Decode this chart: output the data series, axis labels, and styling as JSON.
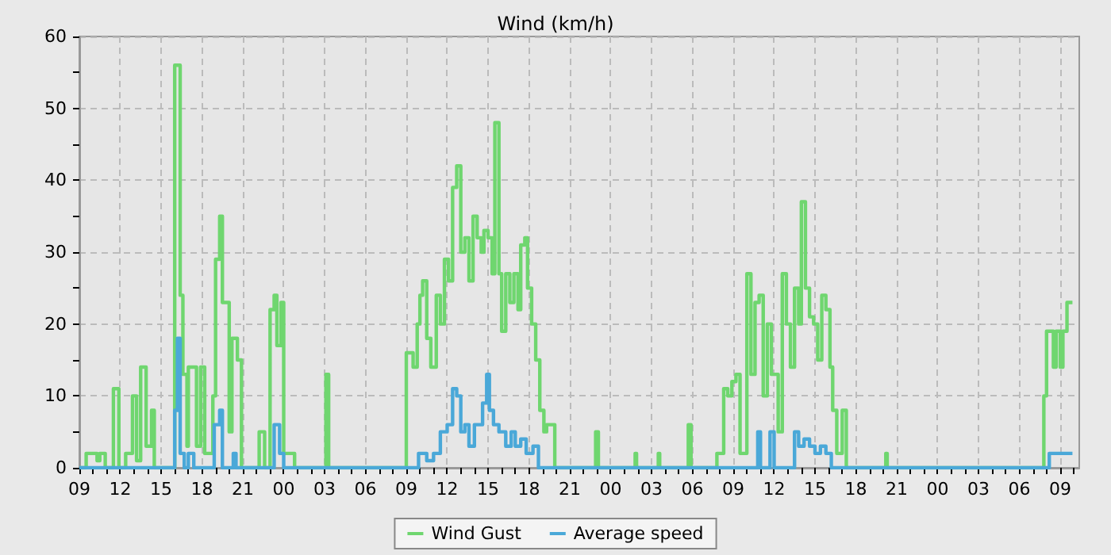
{
  "chart_data": {
    "type": "step",
    "title": "Wind (km/h)",
    "legend": "bottom",
    "grid": true,
    "marker": "none",
    "xlim": [
      9,
      82.4
    ],
    "xticks": [
      {
        "value": 9,
        "label": "09"
      },
      {
        "value": 10,
        "label": null
      },
      {
        "value": 11,
        "label": null
      },
      {
        "value": 12,
        "label": "12"
      },
      {
        "value": 13,
        "label": null
      },
      {
        "value": 14,
        "label": null
      },
      {
        "value": 15,
        "label": "15"
      },
      {
        "value": 16,
        "label": null
      },
      {
        "value": 17,
        "label": null
      },
      {
        "value": 18,
        "label": "18"
      },
      {
        "value": 19,
        "label": null
      },
      {
        "value": 20,
        "label": null
      },
      {
        "value": 21,
        "label": "21"
      },
      {
        "value": 22,
        "label": null
      },
      {
        "value": 23,
        "label": null
      },
      {
        "value": 24,
        "label": "00"
      },
      {
        "value": 25,
        "label": null
      },
      {
        "value": 26,
        "label": null
      },
      {
        "value": 27,
        "label": "03"
      },
      {
        "value": 28,
        "label": null
      },
      {
        "value": 29,
        "label": null
      },
      {
        "value": 30,
        "label": "06"
      },
      {
        "value": 31,
        "label": null
      },
      {
        "value": 32,
        "label": null
      },
      {
        "value": 33,
        "label": "09"
      },
      {
        "value": 34,
        "label": null
      },
      {
        "value": 35,
        "label": null
      },
      {
        "value": 36,
        "label": "12"
      },
      {
        "value": 37,
        "label": null
      },
      {
        "value": 38,
        "label": null
      },
      {
        "value": 39,
        "label": "15"
      },
      {
        "value": 40,
        "label": null
      },
      {
        "value": 41,
        "label": null
      },
      {
        "value": 42,
        "label": "18"
      },
      {
        "value": 43,
        "label": null
      },
      {
        "value": 44,
        "label": null
      },
      {
        "value": 45,
        "label": "21"
      },
      {
        "value": 46,
        "label": null
      },
      {
        "value": 47,
        "label": null
      },
      {
        "value": 48,
        "label": "00"
      },
      {
        "value": 49,
        "label": null
      },
      {
        "value": 50,
        "label": null
      },
      {
        "value": 51,
        "label": "03"
      },
      {
        "value": 52,
        "label": null
      },
      {
        "value": 53,
        "label": null
      },
      {
        "value": 54,
        "label": "06"
      },
      {
        "value": 55,
        "label": null
      },
      {
        "value": 56,
        "label": null
      },
      {
        "value": 57,
        "label": "09"
      },
      {
        "value": 58,
        "label": null
      },
      {
        "value": 59,
        "label": null
      },
      {
        "value": 60,
        "label": "12"
      },
      {
        "value": 61,
        "label": null
      },
      {
        "value": 62,
        "label": null
      },
      {
        "value": 63,
        "label": "15"
      },
      {
        "value": 64,
        "label": null
      },
      {
        "value": 65,
        "label": null
      },
      {
        "value": 66,
        "label": "18"
      },
      {
        "value": 67,
        "label": null
      },
      {
        "value": 68,
        "label": null
      },
      {
        "value": 69,
        "label": "21"
      },
      {
        "value": 70,
        "label": null
      },
      {
        "value": 71,
        "label": null
      },
      {
        "value": 72,
        "label": "00"
      },
      {
        "value": 73,
        "label": null
      },
      {
        "value": 74,
        "label": null
      },
      {
        "value": 75,
        "label": "03"
      },
      {
        "value": 76,
        "label": null
      },
      {
        "value": 77,
        "label": null
      },
      {
        "value": 78,
        "label": "06"
      },
      {
        "value": 79,
        "label": null
      },
      {
        "value": 80,
        "label": null
      },
      {
        "value": 81,
        "label": "09"
      },
      {
        "value": 82,
        "label": null
      }
    ],
    "ylim": [
      0,
      60
    ],
    "yticks": [
      0,
      {
        "value": 5,
        "label": null
      },
      10,
      {
        "value": 15,
        "label": null
      },
      20,
      {
        "value": 25,
        "label": null
      },
      30,
      {
        "value": 35,
        "label": null
      },
      40,
      {
        "value": 45,
        "label": null
      },
      50,
      {
        "value": 55,
        "label": null
      },
      60
    ],
    "series": [
      {
        "name": "Wind Gust",
        "color": "#6fd66f",
        "x": [
          9,
          9.5,
          10.3,
          10.5,
          10.9,
          11.5,
          11.9,
          12.4,
          12.9,
          13.2,
          13.5,
          13.9,
          14.3,
          14.5,
          16,
          16.4,
          16.6,
          16.9,
          17,
          17.6,
          17.9,
          18.2,
          18.8,
          19,
          19.3,
          19.5,
          20,
          20.2,
          20.6,
          20.9,
          22.2,
          22.6,
          23,
          23.3,
          23.5,
          23.8,
          24,
          24.8,
          27.1,
          27.3,
          33,
          33.5,
          33.8,
          34,
          34.2,
          34.5,
          34.8,
          35.2,
          35.5,
          35.8,
          36.1,
          36.4,
          36.7,
          37,
          37.3,
          37.6,
          37.9,
          38.2,
          38.5,
          38.7,
          39,
          39.3,
          39.5,
          39.8,
          40,
          40.3,
          40.6,
          40.9,
          41.2,
          41.4,
          41.7,
          41.9,
          42.2,
          42.5,
          42.8,
          43.1,
          43.3,
          43.9,
          46.9,
          47.1,
          49.8,
          49.9,
          51.5,
          51.6,
          53.7,
          53.9,
          55.8,
          56.3,
          56.6,
          56.9,
          57.2,
          57.5,
          58,
          58.3,
          58.6,
          58.9,
          59.2,
          59.5,
          59.8,
          60.3,
          60.6,
          60.9,
          61.2,
          61.5,
          61.8,
          62,
          62.3,
          62.6,
          62.9,
          63.2,
          63.5,
          63.8,
          64.1,
          64.3,
          64.6,
          65,
          65.3,
          68.2,
          68.3,
          79.8,
          80,
          80.5,
          80.7,
          81,
          81.2,
          81.5,
          81.9
        ],
        "values": [
          0,
          2,
          1,
          2,
          0,
          11,
          0,
          2,
          10,
          1,
          14,
          3,
          8,
          0,
          56,
          24,
          13,
          3,
          14,
          3,
          14,
          2,
          10,
          29,
          35,
          23,
          5,
          18,
          15,
          0,
          5,
          0,
          22,
          24,
          17,
          23,
          2,
          0,
          13,
          0,
          16,
          14,
          20,
          24,
          26,
          18,
          14,
          24,
          20,
          29,
          26,
          39,
          42,
          30,
          32,
          26,
          35,
          32,
          30,
          33,
          32,
          27,
          48,
          27,
          19,
          27,
          23,
          27,
          22,
          31,
          32,
          25,
          20,
          15,
          8,
          5,
          6,
          0,
          5,
          0,
          2,
          0,
          2,
          0,
          6,
          0,
          2,
          11,
          10,
          12,
          13,
          2,
          27,
          13,
          23,
          24,
          10,
          20,
          13,
          5,
          27,
          20,
          14,
          25,
          20,
          37,
          25,
          21,
          20,
          15,
          24,
          22,
          14,
          8,
          2,
          8,
          0,
          2,
          0,
          10,
          19,
          14,
          19,
          14,
          19,
          23,
          23
        ]
      },
      {
        "name": "Average speed",
        "color": "#4aa8d8",
        "x": [
          9,
          16,
          16.2,
          16.4,
          16.7,
          17,
          17.4,
          18.9,
          19.3,
          19.5,
          20.3,
          20.5,
          23.3,
          23.7,
          24,
          33.9,
          34.5,
          35,
          35.5,
          36,
          36.4,
          36.7,
          37,
          37.3,
          37.6,
          38,
          38.3,
          38.6,
          38.9,
          39.1,
          39.4,
          39.8,
          40.3,
          40.7,
          41,
          41.4,
          41.8,
          42.3,
          42.7,
          58.8,
          59,
          59.7,
          60,
          61.5,
          61.8,
          62.2,
          62.6,
          63,
          63.4,
          63.8,
          64.2,
          80.2,
          81.9
        ],
        "values": [
          0,
          8,
          18,
          2,
          0,
          2,
          0,
          6,
          8,
          0,
          2,
          0,
          6,
          2,
          0,
          2,
          1,
          2,
          5,
          6,
          11,
          10,
          5,
          6,
          3,
          6,
          6,
          9,
          13,
          8,
          6,
          5,
          3,
          5,
          3,
          4,
          2,
          3,
          0,
          5,
          0,
          5,
          0,
          5,
          3,
          4,
          3,
          2,
          3,
          2,
          0,
          2,
          2
        ]
      }
    ]
  }
}
